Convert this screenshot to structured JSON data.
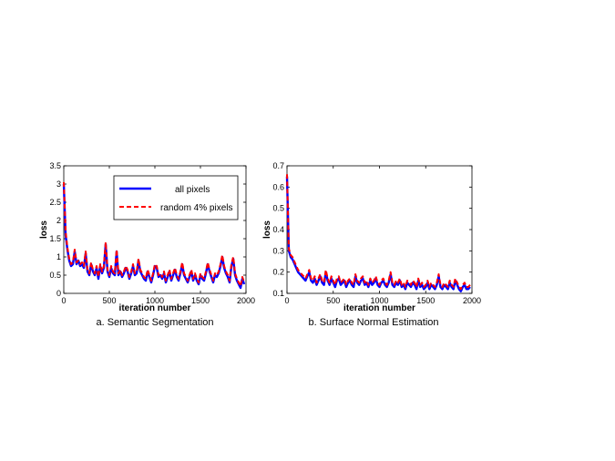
{
  "chart_data": [
    {
      "type": "line",
      "caption": "a. Semantic Segmentation",
      "xlabel": "iteration number",
      "ylabel": "loss",
      "xlim": [
        0,
        2000
      ],
      "ylim": [
        0,
        3.5
      ],
      "xticks": [
        "0",
        "500",
        "1000",
        "1500",
        "2000"
      ],
      "yticks": [
        "0",
        "0.5",
        "1",
        "1.5",
        "2",
        "2.5",
        "3",
        "3.5"
      ],
      "legend_position": "top-right",
      "series": [
        {
          "name": "all pixels",
          "color": "#0000ff",
          "style": "solid",
          "x": [
            0,
            20,
            40,
            60,
            80,
            100,
            120,
            140,
            160,
            180,
            200,
            220,
            240,
            260,
            280,
            300,
            320,
            340,
            360,
            380,
            400,
            420,
            440,
            460,
            480,
            500,
            520,
            540,
            560,
            580,
            600,
            620,
            640,
            660,
            680,
            700,
            720,
            740,
            760,
            780,
            800,
            820,
            840,
            860,
            880,
            900,
            920,
            940,
            960,
            980,
            1000,
            1020,
            1040,
            1060,
            1080,
            1100,
            1120,
            1140,
            1160,
            1180,
            1200,
            1220,
            1240,
            1260,
            1280,
            1300,
            1320,
            1340,
            1360,
            1380,
            1400,
            1420,
            1440,
            1460,
            1480,
            1500,
            1520,
            1540,
            1560,
            1580,
            1600,
            1620,
            1640,
            1660,
            1680,
            1700,
            1720,
            1740,
            1760,
            1780,
            1800,
            1820,
            1840,
            1860,
            1880,
            1900,
            1920,
            1940,
            1960,
            1980
          ],
          "y": [
            3.0,
            1.6,
            1.2,
            0.9,
            0.75,
            0.8,
            1.15,
            0.8,
            0.9,
            0.75,
            0.8,
            0.7,
            1.1,
            0.6,
            0.5,
            0.8,
            0.6,
            0.5,
            0.7,
            0.4,
            0.75,
            0.55,
            0.7,
            1.35,
            0.6,
            0.45,
            0.7,
            0.55,
            0.5,
            1.15,
            0.5,
            0.6,
            0.45,
            0.55,
            0.7,
            0.6,
            0.4,
            0.55,
            0.75,
            0.5,
            0.55,
            0.9,
            0.6,
            0.5,
            0.4,
            0.35,
            0.6,
            0.45,
            0.3,
            0.5,
            0.75,
            0.7,
            0.45,
            0.5,
            0.4,
            0.55,
            0.3,
            0.45,
            0.6,
            0.35,
            0.5,
            0.65,
            0.45,
            0.35,
            0.55,
            0.8,
            0.5,
            0.4,
            0.3,
            0.45,
            0.6,
            0.35,
            0.5,
            0.35,
            0.25,
            0.5,
            0.4,
            0.35,
            0.55,
            0.8,
            0.6,
            0.45,
            0.3,
            0.5,
            0.45,
            0.55,
            0.75,
            1.0,
            0.7,
            0.55,
            0.45,
            0.3,
            0.75,
            0.95,
            0.5,
            0.35,
            0.25,
            0.15,
            0.4,
            0.25
          ]
        },
        {
          "name": "random 4% pixels",
          "color": "#ff0000",
          "style": "dashed",
          "x": [
            0,
            20,
            40,
            60,
            80,
            100,
            120,
            140,
            160,
            180,
            200,
            220,
            240,
            260,
            280,
            300,
            320,
            340,
            360,
            380,
            400,
            420,
            440,
            460,
            480,
            500,
            520,
            540,
            560,
            580,
            600,
            620,
            640,
            660,
            680,
            700,
            720,
            740,
            760,
            780,
            800,
            820,
            840,
            860,
            880,
            900,
            920,
            940,
            960,
            980,
            1000,
            1020,
            1040,
            1060,
            1080,
            1100,
            1120,
            1140,
            1160,
            1180,
            1200,
            1220,
            1240,
            1260,
            1280,
            1300,
            1320,
            1340,
            1360,
            1380,
            1400,
            1420,
            1440,
            1460,
            1480,
            1500,
            1520,
            1540,
            1560,
            1580,
            1600,
            1620,
            1640,
            1660,
            1680,
            1700,
            1720,
            1740,
            1760,
            1780,
            1800,
            1820,
            1840,
            1860,
            1880,
            1900,
            1920,
            1940,
            1960,
            1980
          ],
          "y": [
            3.05,
            1.7,
            1.25,
            0.95,
            0.8,
            0.85,
            1.2,
            0.85,
            0.9,
            0.8,
            0.85,
            0.75,
            1.15,
            0.65,
            0.55,
            0.85,
            0.65,
            0.55,
            0.75,
            0.45,
            0.8,
            0.6,
            0.75,
            1.4,
            0.65,
            0.5,
            0.75,
            0.6,
            0.55,
            1.2,
            0.55,
            0.65,
            0.5,
            0.6,
            0.75,
            0.65,
            0.45,
            0.6,
            0.8,
            0.55,
            0.6,
            0.95,
            0.65,
            0.55,
            0.45,
            0.4,
            0.65,
            0.5,
            0.35,
            0.55,
            0.8,
            0.75,
            0.5,
            0.55,
            0.45,
            0.6,
            0.35,
            0.5,
            0.65,
            0.4,
            0.55,
            0.7,
            0.5,
            0.4,
            0.6,
            0.85,
            0.55,
            0.45,
            0.35,
            0.5,
            0.65,
            0.4,
            0.55,
            0.4,
            0.3,
            0.55,
            0.45,
            0.4,
            0.6,
            0.85,
            0.65,
            0.5,
            0.35,
            0.55,
            0.5,
            0.6,
            0.8,
            1.05,
            0.75,
            0.6,
            0.5,
            0.35,
            0.8,
            1.0,
            0.55,
            0.4,
            0.3,
            0.2,
            0.45,
            0.3
          ]
        }
      ]
    },
    {
      "type": "line",
      "caption": "b. Surface Normal Estimation",
      "xlabel": "iteration number",
      "ylabel": "loss",
      "xlim": [
        0,
        2000
      ],
      "ylim": [
        0.1,
        0.7
      ],
      "xticks": [
        "0",
        "500",
        "1000",
        "1500",
        "2000"
      ],
      "yticks": [
        "0.1",
        "0.2",
        "0.3",
        "0.4",
        "0.5",
        "0.6",
        "0.7"
      ],
      "series": [
        {
          "name": "all pixels",
          "color": "#0000ff",
          "style": "solid",
          "x": [
            0,
            20,
            40,
            60,
            80,
            100,
            120,
            140,
            160,
            180,
            200,
            220,
            240,
            260,
            280,
            300,
            320,
            340,
            360,
            380,
            400,
            420,
            440,
            460,
            480,
            500,
            520,
            540,
            560,
            580,
            600,
            620,
            640,
            660,
            680,
            700,
            720,
            740,
            760,
            780,
            800,
            820,
            840,
            860,
            880,
            900,
            920,
            940,
            960,
            980,
            1000,
            1020,
            1040,
            1060,
            1080,
            1100,
            1120,
            1140,
            1160,
            1180,
            1200,
            1220,
            1240,
            1260,
            1280,
            1300,
            1320,
            1340,
            1360,
            1380,
            1400,
            1420,
            1440,
            1460,
            1480,
            1500,
            1520,
            1540,
            1560,
            1580,
            1600,
            1620,
            1640,
            1660,
            1680,
            1700,
            1720,
            1740,
            1760,
            1780,
            1800,
            1820,
            1840,
            1860,
            1880,
            1900,
            1920,
            1940,
            1960,
            1980
          ],
          "y": [
            0.65,
            0.3,
            0.27,
            0.26,
            0.24,
            0.22,
            0.2,
            0.19,
            0.18,
            0.17,
            0.16,
            0.18,
            0.2,
            0.16,
            0.15,
            0.17,
            0.14,
            0.16,
            0.18,
            0.15,
            0.14,
            0.2,
            0.16,
            0.14,
            0.17,
            0.15,
            0.13,
            0.16,
            0.17,
            0.14,
            0.15,
            0.16,
            0.13,
            0.15,
            0.16,
            0.14,
            0.13,
            0.18,
            0.15,
            0.14,
            0.16,
            0.17,
            0.14,
            0.15,
            0.13,
            0.16,
            0.14,
            0.15,
            0.17,
            0.14,
            0.13,
            0.15,
            0.16,
            0.14,
            0.13,
            0.15,
            0.19,
            0.14,
            0.13,
            0.15,
            0.14,
            0.16,
            0.13,
            0.14,
            0.12,
            0.15,
            0.14,
            0.13,
            0.15,
            0.14,
            0.12,
            0.16,
            0.13,
            0.14,
            0.12,
            0.13,
            0.15,
            0.12,
            0.14,
            0.13,
            0.12,
            0.14,
            0.18,
            0.13,
            0.12,
            0.14,
            0.13,
            0.12,
            0.15,
            0.13,
            0.12,
            0.16,
            0.14,
            0.12,
            0.11,
            0.13,
            0.14,
            0.12,
            0.12,
            0.13
          ]
        },
        {
          "name": "random 4% pixels",
          "color": "#ff0000",
          "style": "dashed",
          "x": [
            0,
            20,
            40,
            60,
            80,
            100,
            120,
            140,
            160,
            180,
            200,
            220,
            240,
            260,
            280,
            300,
            320,
            340,
            360,
            380,
            400,
            420,
            440,
            460,
            480,
            500,
            520,
            540,
            560,
            580,
            600,
            620,
            640,
            660,
            680,
            700,
            720,
            740,
            760,
            780,
            800,
            820,
            840,
            860,
            880,
            900,
            920,
            940,
            960,
            980,
            1000,
            1020,
            1040,
            1060,
            1080,
            1100,
            1120,
            1140,
            1160,
            1180,
            1200,
            1220,
            1240,
            1260,
            1280,
            1300,
            1320,
            1340,
            1360,
            1380,
            1400,
            1420,
            1440,
            1460,
            1480,
            1500,
            1520,
            1540,
            1560,
            1580,
            1600,
            1620,
            1640,
            1660,
            1680,
            1700,
            1720,
            1740,
            1760,
            1780,
            1800,
            1820,
            1840,
            1860,
            1880,
            1900,
            1920,
            1940,
            1960,
            1980
          ],
          "y": [
            0.66,
            0.31,
            0.28,
            0.27,
            0.25,
            0.23,
            0.21,
            0.2,
            0.19,
            0.18,
            0.17,
            0.19,
            0.21,
            0.17,
            0.16,
            0.18,
            0.15,
            0.17,
            0.19,
            0.16,
            0.15,
            0.21,
            0.17,
            0.15,
            0.18,
            0.16,
            0.14,
            0.17,
            0.18,
            0.15,
            0.16,
            0.17,
            0.14,
            0.16,
            0.17,
            0.15,
            0.14,
            0.19,
            0.16,
            0.15,
            0.17,
            0.18,
            0.15,
            0.16,
            0.14,
            0.17,
            0.15,
            0.16,
            0.18,
            0.15,
            0.14,
            0.16,
            0.17,
            0.15,
            0.14,
            0.16,
            0.2,
            0.15,
            0.14,
            0.16,
            0.15,
            0.17,
            0.14,
            0.15,
            0.13,
            0.16,
            0.15,
            0.14,
            0.16,
            0.15,
            0.13,
            0.17,
            0.14,
            0.15,
            0.13,
            0.14,
            0.16,
            0.13,
            0.15,
            0.14,
            0.13,
            0.15,
            0.19,
            0.14,
            0.13,
            0.15,
            0.14,
            0.13,
            0.16,
            0.14,
            0.13,
            0.17,
            0.15,
            0.13,
            0.12,
            0.14,
            0.15,
            0.13,
            0.13,
            0.14
          ]
        }
      ]
    }
  ]
}
